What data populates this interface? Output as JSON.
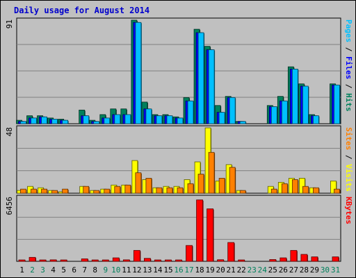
{
  "chart_data": {
    "type": "bar",
    "title": "Daily usage for August 2014",
    "days": [
      "1",
      "2",
      "3",
      "4",
      "5",
      "6",
      "7",
      "8",
      "9",
      "10",
      "11",
      "12",
      "13",
      "14",
      "15",
      "16",
      "17",
      "18",
      "19",
      "20",
      "21",
      "22",
      "23",
      "24",
      "25",
      "26",
      "27",
      "28",
      "29",
      "30",
      "31"
    ],
    "weekend_days": [
      "2",
      "3",
      "9",
      "10",
      "16",
      "17",
      "23",
      "24",
      "30",
      "31"
    ],
    "panels": [
      {
        "id": "requests",
        "max_label": "91",
        "ymax": 91,
        "legend": [
          "Pages",
          "Files",
          "Hits"
        ],
        "series": [
          {
            "name": "Hits",
            "color": "#00805c",
            "values": [
              3,
              7,
              7,
              5,
              4,
              0,
              12,
              3,
              8,
              13,
              13,
              91,
              19,
              8,
              8,
              6,
              23,
              83,
              68,
              16,
              24,
              2,
              0,
              0,
              16,
              24,
              50,
              35,
              8,
              0,
              35
            ]
          },
          {
            "name": "Files",
            "color": "#0000ff",
            "values": [
              2,
              5,
              6,
              4,
              3,
              0,
              7,
              2,
              5,
              8,
              8,
              89,
              13,
              7,
              7,
              5,
              20,
              80,
              65,
              10,
              23,
              2,
              0,
              0,
              15,
              20,
              48,
              33,
              7,
              0,
              34
            ]
          },
          {
            "name": "Pages",
            "color": "#00c0ff",
            "values": [
              2,
              5,
              6,
              4,
              3,
              0,
              7,
              2,
              5,
              8,
              8,
              89,
              13,
              7,
              7,
              5,
              20,
              80,
              65,
              10,
              23,
              2,
              0,
              0,
              15,
              20,
              48,
              33,
              7,
              0,
              34
            ]
          }
        ]
      },
      {
        "id": "visits",
        "max_label": "48",
        "ymax": 48,
        "legend": [
          "Sites",
          "Visits"
        ],
        "series": [
          {
            "name": "Visits",
            "color": "#ffff00",
            "values": [
              2,
              5,
              4,
              2,
              1,
              0,
              5,
              2,
              3,
              6,
              6,
              24,
              10,
              4,
              5,
              5,
              10,
              23,
              48,
              9,
              21,
              2,
              0,
              0,
              5,
              8,
              11,
              11,
              4,
              0,
              9
            ]
          },
          {
            "name": "Sites",
            "color": "#ff8000",
            "values": [
              3,
              3,
              3,
              2,
              3,
              0,
              5,
              2,
              3,
              5,
              6,
              15,
              11,
              4,
              4,
              4,
              7,
              14,
              30,
              11,
              19,
              2,
              0,
              0,
              3,
              7,
              10,
              5,
              4,
              0,
              3
            ]
          }
        ]
      },
      {
        "id": "kbytes",
        "max_label": "6456",
        "ymax": 6456,
        "legend": [
          "KBytes"
        ],
        "series": [
          {
            "name": "KBytes",
            "color": "#ff0000",
            "values": [
              100,
              400,
              100,
              150,
              100,
              0,
              250,
              60,
              120,
              350,
              150,
              1100,
              300,
              100,
              120,
              100,
              1600,
              6200,
              5300,
              160,
              1900,
              130,
              0,
              0,
              180,
              350,
              1100,
              700,
              450,
              0,
              450
            ]
          }
        ]
      }
    ]
  }
}
